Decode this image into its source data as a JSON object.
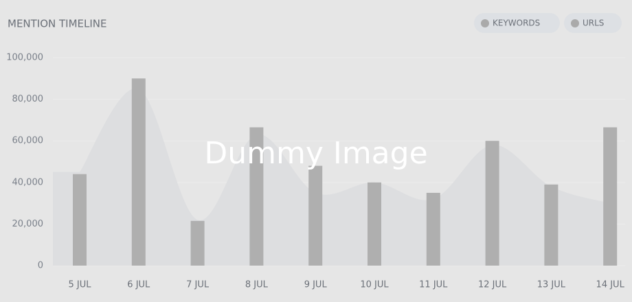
{
  "chart_data": {
    "type": "bar",
    "title": "MENTION TIMELINE",
    "watermark": "Dummy Image",
    "categories": [
      "5 JUL",
      "6 JUL",
      "7 JUL",
      "8 JUL",
      "9 JUL",
      "10 JUL",
      "11 JUL",
      "12 JUL",
      "13 JUL",
      "14 JUL"
    ],
    "series": [
      {
        "name": "KEYWORDS",
        "type": "bar",
        "color": "#afafaf",
        "values": [
          44000,
          90000,
          21500,
          66500,
          48000,
          40000,
          35000,
          60000,
          39000,
          66500
        ]
      },
      {
        "name": "URLS",
        "type": "area",
        "color": "#dcdddf",
        "values": [
          45000,
          85000,
          22000,
          63000,
          35000,
          40000,
          32000,
          58000,
          38000,
          30000
        ]
      }
    ],
    "ylim": [
      0,
      100000
    ],
    "yticks": [
      0,
      {
        "value": 20000,
        "label": "20,000"
      },
      {
        "value": 40000,
        "label": "40,000"
      },
      {
        "value": 60000,
        "label": "60,000"
      },
      {
        "value": 80000,
        "label": "80,000"
      },
      {
        "value": 100000,
        "label": "100,000"
      }
    ],
    "grid": true,
    "legend": "top-right"
  }
}
